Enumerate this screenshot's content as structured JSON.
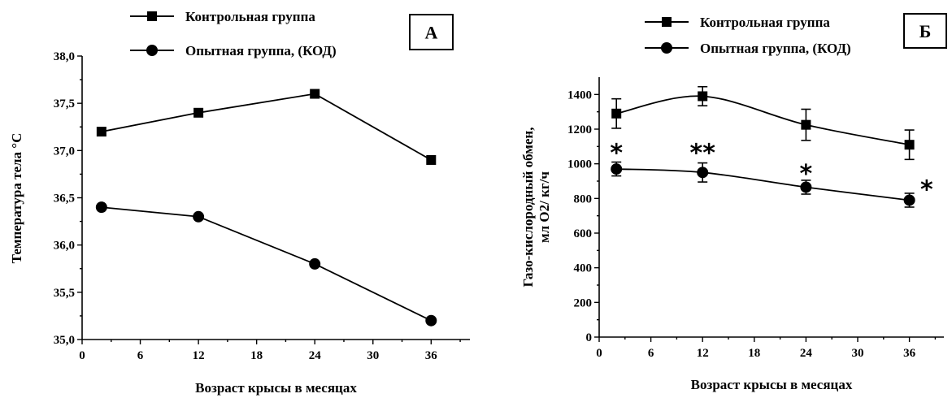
{
  "chart_data": [
    {
      "type": "line",
      "panel_label": "А",
      "xlabel": "Возраст крысы в месяцах",
      "ylabel": "Температура тела °C",
      "xlim": [
        0,
        40
      ],
      "ylim": [
        35.0,
        38.0
      ],
      "xticks": [
        0,
        6,
        12,
        18,
        24,
        30,
        36
      ],
      "yticks": [
        "35,0",
        "35,5",
        "36,0",
        "36,5",
        "37,0",
        "37,5",
        "38,0"
      ],
      "legend_placement": "top",
      "series": [
        {
          "name": "Контрольная группа",
          "marker": "square",
          "x": [
            2,
            12,
            24,
            36
          ],
          "y": [
            37.2,
            37.4,
            37.6,
            36.9
          ]
        },
        {
          "name": "Опытная группа, (КОД)",
          "marker": "circle",
          "x": [
            2,
            12,
            24,
            36
          ],
          "y": [
            36.4,
            36.3,
            35.8,
            35.2
          ]
        }
      ]
    },
    {
      "type": "line",
      "panel_label": "Б",
      "xlabel": "Возраст крысы в месяцах",
      "ylabel": [
        "Газо-кислородный обмен,",
        "мл O2/ кг/ч"
      ],
      "xlim": [
        0,
        40
      ],
      "ylim": [
        0,
        1500
      ],
      "xticks": [
        0,
        6,
        12,
        18,
        24,
        30,
        36
      ],
      "yticks": [
        "0",
        "200",
        "400",
        "600",
        "800",
        "1000",
        "1200",
        "1400"
      ],
      "legend_placement": "top",
      "smooth": true,
      "series": [
        {
          "name": "Контрольная группа",
          "marker": "square",
          "x": [
            2,
            12,
            24,
            36
          ],
          "y": [
            1290,
            1390,
            1225,
            1110
          ],
          "error": [
            85,
            55,
            90,
            85
          ]
        },
        {
          "name": "Опытная группа, (КОД)",
          "marker": "circle",
          "x": [
            2,
            12,
            24,
            36
          ],
          "y": [
            970,
            950,
            865,
            790
          ],
          "error": [
            40,
            55,
            40,
            40
          ]
        }
      ],
      "annotations": [
        {
          "text": "*",
          "x": 2,
          "y": 1080
        },
        {
          "text": "**",
          "x": 12,
          "y": 1080
        },
        {
          "text": "*",
          "x": 24,
          "y": 960
        },
        {
          "text": "*",
          "x": 38,
          "y": 870
        }
      ]
    }
  ]
}
